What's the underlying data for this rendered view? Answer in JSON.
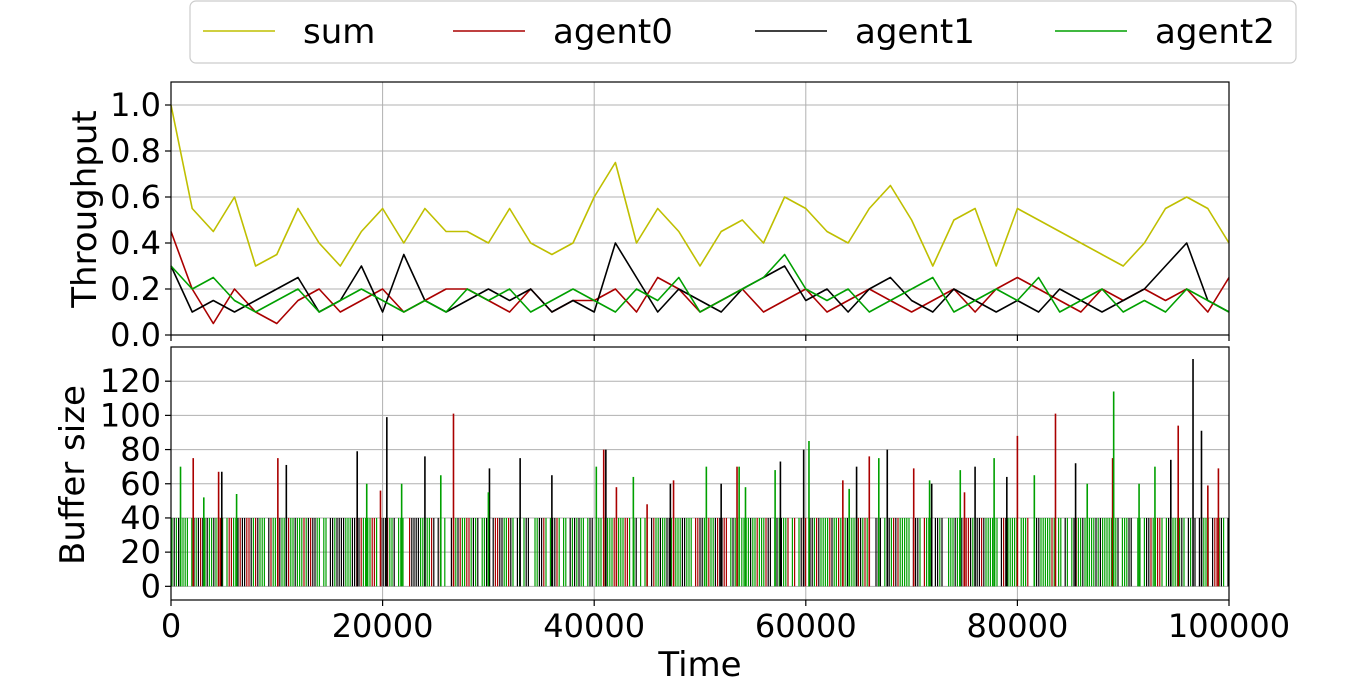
{
  "colors": {
    "sum": "#bfbf00",
    "agent0": "#aa0000",
    "agent1": "#000000",
    "agent2": "#00a000",
    "grid": "#b0b0b0"
  },
  "legend": {
    "placement": "top-center",
    "entries": [
      {
        "label": "sum",
        "key": "sum"
      },
      {
        "label": "agent0",
        "key": "agent0"
      },
      {
        "label": "agent1",
        "key": "agent1"
      },
      {
        "label": "agent2",
        "key": "agent2"
      }
    ]
  },
  "chart_data": [
    {
      "type": "line",
      "xlabel": "",
      "ylabel": "Throughput",
      "xlim": [
        0,
        100000
      ],
      "ylim": [
        0,
        1.1
      ],
      "xticks": [
        0,
        20000,
        40000,
        60000,
        80000,
        100000
      ],
      "yticks": [
        0.0,
        0.2,
        0.4,
        0.6,
        0.8,
        1.0
      ],
      "ytick_labels": [
        "0.0",
        "0.2",
        "0.4",
        "0.6",
        "0.8",
        "1.0"
      ],
      "grid": true,
      "x": [
        0,
        2000,
        4000,
        6000,
        8000,
        10000,
        12000,
        14000,
        16000,
        18000,
        20000,
        22000,
        24000,
        26000,
        28000,
        30000,
        32000,
        34000,
        36000,
        38000,
        40000,
        42000,
        44000,
        46000,
        48000,
        50000,
        52000,
        54000,
        56000,
        58000,
        60000,
        62000,
        64000,
        66000,
        68000,
        70000,
        72000,
        74000,
        76000,
        78000,
        80000,
        82000,
        84000,
        86000,
        88000,
        90000,
        92000,
        94000,
        96000,
        98000,
        100000
      ],
      "series": [
        {
          "name": "sum",
          "key": "sum",
          "values": [
            1.0,
            0.55,
            0.45,
            0.6,
            0.3,
            0.35,
            0.55,
            0.4,
            0.3,
            0.45,
            0.55,
            0.4,
            0.55,
            0.45,
            0.45,
            0.4,
            0.55,
            0.4,
            0.35,
            0.4,
            0.6,
            0.75,
            0.4,
            0.55,
            0.45,
            0.3,
            0.45,
            0.5,
            0.4,
            0.6,
            0.55,
            0.45,
            0.4,
            0.55,
            0.65,
            0.5,
            0.3,
            0.5,
            0.55,
            0.3,
            0.55,
            0.5,
            0.45,
            0.4,
            0.35,
            0.3,
            0.4,
            0.55,
            0.6,
            0.55,
            0.4
          ]
        },
        {
          "name": "agent0",
          "key": "agent0",
          "values": [
            0.45,
            0.2,
            0.05,
            0.2,
            0.1,
            0.05,
            0.15,
            0.2,
            0.1,
            0.15,
            0.2,
            0.1,
            0.15,
            0.2,
            0.2,
            0.15,
            0.1,
            0.2,
            0.1,
            0.15,
            0.15,
            0.2,
            0.1,
            0.25,
            0.2,
            0.1,
            0.15,
            0.2,
            0.1,
            0.15,
            0.2,
            0.1,
            0.15,
            0.2,
            0.15,
            0.1,
            0.15,
            0.2,
            0.1,
            0.2,
            0.25,
            0.2,
            0.15,
            0.1,
            0.2,
            0.15,
            0.2,
            0.15,
            0.2,
            0.1,
            0.25
          ]
        },
        {
          "name": "agent1",
          "key": "agent1",
          "values": [
            0.3,
            0.1,
            0.15,
            0.1,
            0.15,
            0.2,
            0.25,
            0.1,
            0.15,
            0.3,
            0.1,
            0.35,
            0.15,
            0.1,
            0.15,
            0.2,
            0.15,
            0.2,
            0.1,
            0.15,
            0.1,
            0.4,
            0.25,
            0.1,
            0.2,
            0.15,
            0.1,
            0.2,
            0.25,
            0.3,
            0.15,
            0.2,
            0.1,
            0.2,
            0.25,
            0.15,
            0.1,
            0.2,
            0.15,
            0.1,
            0.15,
            0.1,
            0.2,
            0.15,
            0.1,
            0.15,
            0.2,
            0.3,
            0.4,
            0.15,
            0.1
          ]
        },
        {
          "name": "agent2",
          "key": "agent2",
          "values": [
            0.3,
            0.2,
            0.25,
            0.15,
            0.1,
            0.15,
            0.2,
            0.1,
            0.15,
            0.2,
            0.15,
            0.1,
            0.15,
            0.1,
            0.2,
            0.15,
            0.2,
            0.1,
            0.15,
            0.2,
            0.15,
            0.1,
            0.2,
            0.15,
            0.25,
            0.1,
            0.15,
            0.2,
            0.25,
            0.35,
            0.2,
            0.15,
            0.2,
            0.1,
            0.15,
            0.2,
            0.25,
            0.1,
            0.15,
            0.2,
            0.15,
            0.25,
            0.1,
            0.15,
            0.2,
            0.1,
            0.15,
            0.1,
            0.2,
            0.15,
            0.1
          ]
        }
      ]
    },
    {
      "type": "line",
      "xlabel": "Time",
      "ylabel": "Buffer size",
      "xlim": [
        0,
        100000
      ],
      "ylim": [
        -8,
        140
      ],
      "xticks": [
        0,
        20000,
        40000,
        60000,
        80000,
        100000
      ],
      "xtick_labels": [
        "0",
        "20000",
        "40000",
        "60000",
        "80000",
        "100000"
      ],
      "yticks": [
        0,
        20,
        40,
        60,
        80,
        100,
        120
      ],
      "grid": true,
      "baseline_band": {
        "from": 0,
        "to": 40
      },
      "spikes": [
        {
          "key": "agent0",
          "points": [
            [
              2100,
              75
            ],
            [
              4500,
              67
            ],
            [
              10100,
              75
            ],
            [
              19800,
              56
            ],
            [
              26700,
              101
            ],
            [
              40900,
              80
            ],
            [
              42100,
              58
            ],
            [
              45000,
              48
            ],
            [
              47500,
              62
            ],
            [
              53500,
              70
            ],
            [
              63500,
              62
            ],
            [
              66000,
              76
            ],
            [
              70200,
              69
            ],
            [
              75000,
              55
            ],
            [
              80000,
              88
            ],
            [
              83600,
              101
            ],
            [
              89000,
              75
            ],
            [
              95200,
              94
            ],
            [
              98000,
              59
            ],
            [
              99000,
              69
            ]
          ]
        },
        {
          "key": "agent1",
          "points": [
            [
              4800,
              67
            ],
            [
              10900,
              71
            ],
            [
              17600,
              79
            ],
            [
              20400,
              99
            ],
            [
              24000,
              76
            ],
            [
              30100,
              69
            ],
            [
              33000,
              75
            ],
            [
              36000,
              65
            ],
            [
              41100,
              80
            ],
            [
              47200,
              60
            ],
            [
              52000,
              60
            ],
            [
              57600,
              73
            ],
            [
              59800,
              80
            ],
            [
              64800,
              70
            ],
            [
              67700,
              80
            ],
            [
              71900,
              60
            ],
            [
              76000,
              70
            ],
            [
              79000,
              64
            ],
            [
              85500,
              72
            ],
            [
              94500,
              74
            ],
            [
              96600,
              133
            ],
            [
              97400,
              91
            ]
          ]
        },
        {
          "key": "agent2",
          "points": [
            [
              900,
              70
            ],
            [
              3100,
              52
            ],
            [
              6200,
              54
            ],
            [
              18500,
              60
            ],
            [
              21800,
              60
            ],
            [
              25500,
              65
            ],
            [
              30000,
              55
            ],
            [
              40200,
              70
            ],
            [
              43700,
              64
            ],
            [
              50600,
              70
            ],
            [
              53700,
              70
            ],
            [
              54300,
              58
            ],
            [
              57100,
              68
            ],
            [
              60300,
              85
            ],
            [
              64100,
              57
            ],
            [
              66900,
              75
            ],
            [
              71700,
              62
            ],
            [
              74600,
              68
            ],
            [
              77800,
              75
            ],
            [
              81600,
              65
            ],
            [
              86600,
              60
            ],
            [
              89100,
              114
            ],
            [
              91500,
              60
            ],
            [
              93000,
              70
            ]
          ]
        }
      ]
    }
  ]
}
